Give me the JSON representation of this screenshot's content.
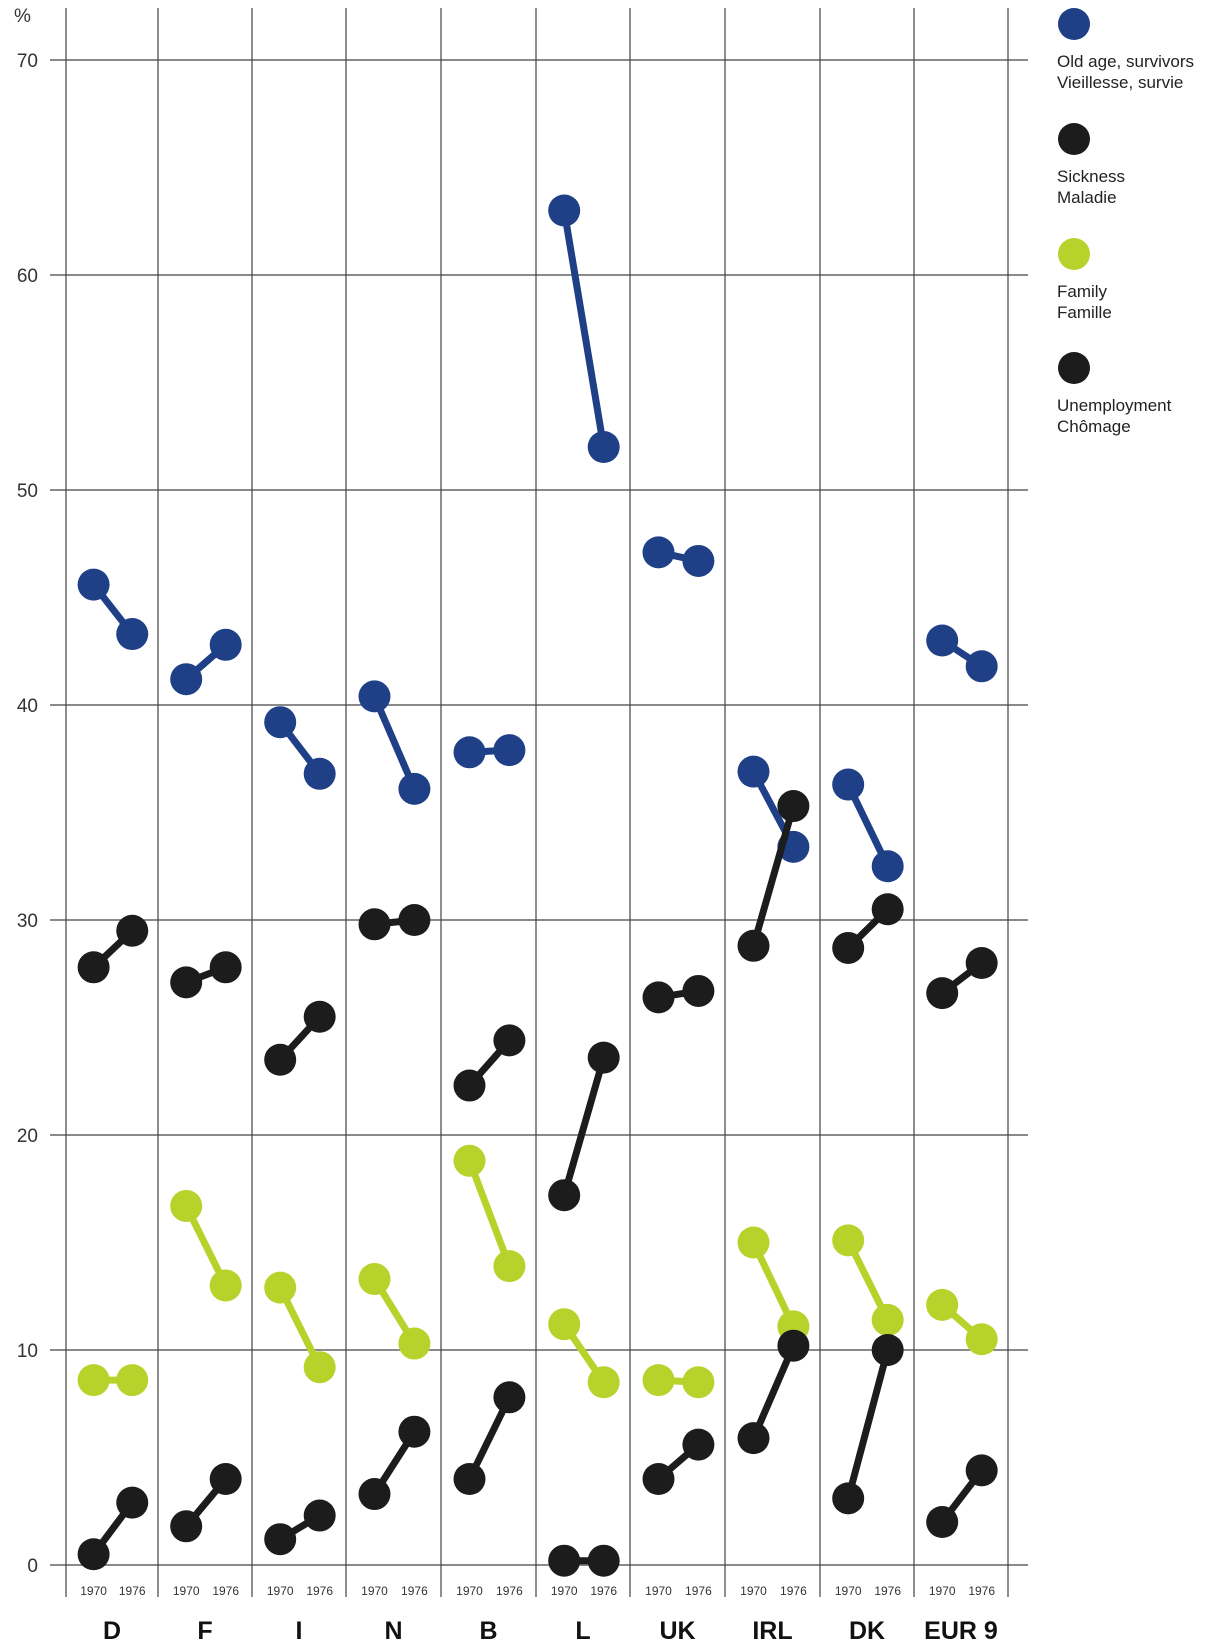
{
  "chart_data": {
    "type": "scatter",
    "y_unit_label": "%",
    "ylim": [
      0,
      70
    ],
    "yticks": [
      0,
      10,
      20,
      30,
      40,
      50,
      60,
      70
    ],
    "years": [
      "1970",
      "1976"
    ],
    "grid": true,
    "legend_position": "top-right",
    "categories": [
      "D",
      "F",
      "I",
      "N",
      "B",
      "L",
      "UK",
      "IRL",
      "DK",
      "EUR 9"
    ],
    "series": [
      {
        "key": "old_age",
        "label_en": "Old age, survivors",
        "label_fr": "Vieillesse, survie",
        "color": "#1f3f86",
        "values": [
          [
            45.6,
            43.3
          ],
          [
            41.2,
            42.8
          ],
          [
            39.2,
            36.8
          ],
          [
            40.4,
            36.1
          ],
          [
            37.8,
            37.9
          ],
          [
            63.0,
            52.0
          ],
          [
            47.1,
            46.7
          ],
          [
            36.9,
            33.4
          ],
          [
            36.3,
            32.5
          ],
          [
            43.0,
            41.8
          ]
        ]
      },
      {
        "key": "sickness",
        "label_en": "Sickness",
        "label_fr": "Maladie",
        "color": "#1c1c1c",
        "values": [
          [
            27.8,
            29.5
          ],
          [
            27.1,
            27.8
          ],
          [
            23.5,
            25.5
          ],
          [
            29.8,
            30.0
          ],
          [
            22.3,
            24.4
          ],
          [
            17.2,
            23.6
          ],
          [
            26.4,
            26.7
          ],
          [
            28.8,
            35.3
          ],
          [
            28.7,
            30.5
          ],
          [
            26.6,
            28.0
          ]
        ]
      },
      {
        "key": "family",
        "label_en": "Family",
        "label_fr": "Famille",
        "color": "#b7d22a",
        "values": [
          [
            8.6,
            8.6
          ],
          [
            16.7,
            13.0
          ],
          [
            12.9,
            9.2
          ],
          [
            13.3,
            10.3
          ],
          [
            18.8,
            13.9
          ],
          [
            11.2,
            8.5
          ],
          [
            8.6,
            8.5
          ],
          [
            15.0,
            11.1
          ],
          [
            15.1,
            11.4
          ],
          [
            12.1,
            10.5
          ]
        ]
      },
      {
        "key": "unemployment",
        "label_en": "Unemployment",
        "label_fr": "Chômage",
        "color": "#1c1c1c",
        "values": [
          [
            0.5,
            2.9
          ],
          [
            1.8,
            4.0
          ],
          [
            1.2,
            2.3
          ],
          [
            3.3,
            6.2
          ],
          [
            4.0,
            7.8
          ],
          [
            0.2,
            0.2
          ],
          [
            4.0,
            5.6
          ],
          [
            5.9,
            10.2
          ],
          [
            3.1,
            10.0
          ],
          [
            2.0,
            4.4
          ]
        ]
      }
    ]
  }
}
